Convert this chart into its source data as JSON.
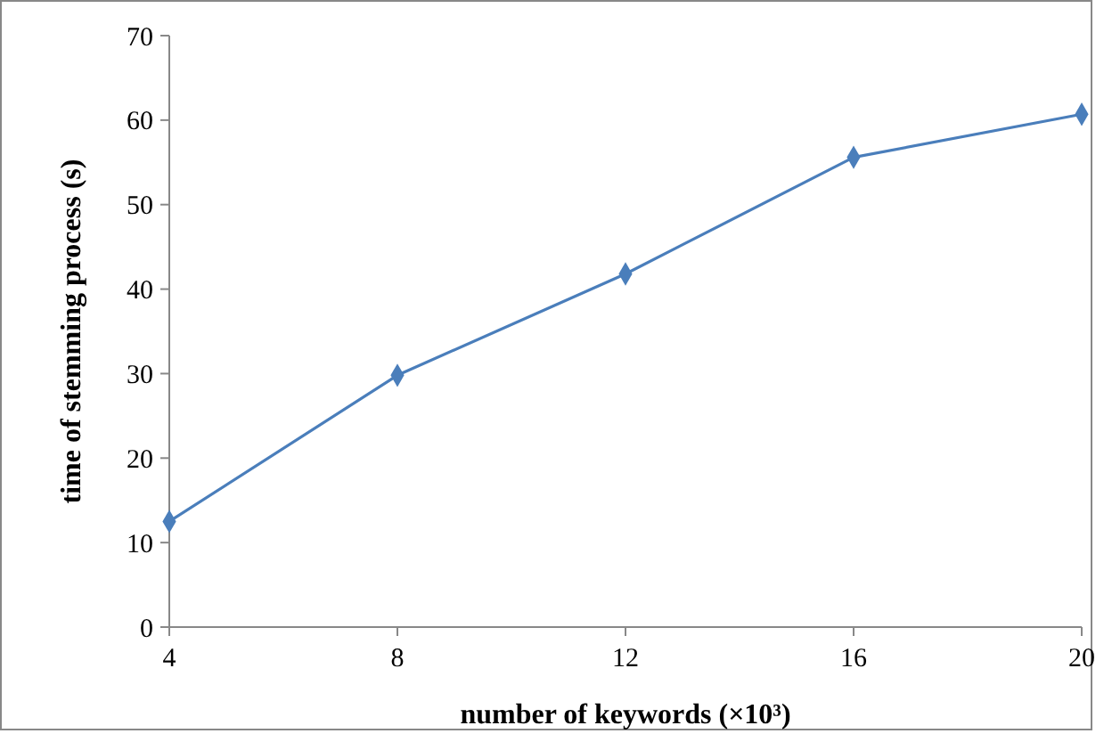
{
  "chart_data": {
    "type": "line",
    "xlabel": "number of keywords (×10³)",
    "ylabel": "time of stemming process (s)",
    "x": [
      4,
      8,
      12,
      16,
      20
    ],
    "series": [
      {
        "color": "#4a7ebb",
        "values": [
          12.5,
          29.8,
          41.8,
          55.6,
          60.7
        ]
      }
    ],
    "xlim": [
      4,
      20
    ],
    "xticks": [
      4,
      8,
      12,
      16,
      20
    ],
    "ylim": [
      0,
      70
    ],
    "yticks": [
      0,
      10,
      20,
      30,
      40,
      50,
      60,
      70
    ],
    "grid": false,
    "marker": "diamond",
    "line_style": "solid"
  }
}
